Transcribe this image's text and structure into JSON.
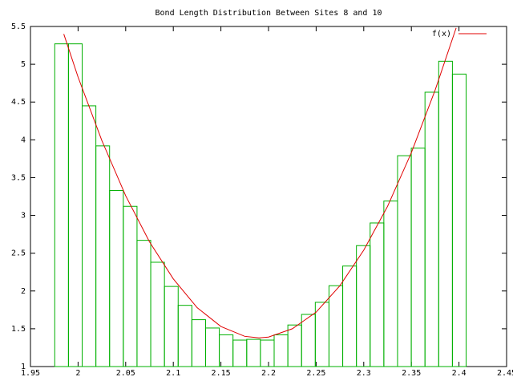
{
  "chart_data": {
    "type": "histogram",
    "title": "Bond Length Distribution Between Sites 8 and 10",
    "bins": [
      1.9755,
      1.9899,
      2.0043,
      2.0187,
      2.0331,
      2.0475,
      2.0619,
      2.0763,
      2.0907,
      2.1051,
      2.1195,
      2.1339,
      2.1483,
      2.1627,
      2.1771,
      2.1915,
      2.2059,
      2.2203,
      2.2347,
      2.2491,
      2.2635,
      2.2779,
      2.2923,
      2.3067,
      2.3211,
      2.3355,
      2.3499,
      2.3643,
      2.3787,
      2.3931,
      2.4075
    ],
    "values": [
      5.27,
      5.27,
      4.45,
      3.92,
      3.33,
      3.12,
      2.67,
      2.38,
      2.06,
      1.81,
      1.62,
      1.51,
      1.42,
      1.35,
      1.36,
      1.35,
      1.42,
      1.55,
      1.69,
      1.85,
      2.07,
      2.33,
      2.6,
      2.9,
      3.19,
      3.79,
      3.89,
      4.63,
      5.04,
      4.87
    ],
    "color": "#00b000",
    "fit": {
      "name": "f(x)",
      "color": "#e00000",
      "x": [
        1.985,
        2.0,
        2.025,
        2.05,
        2.075,
        2.1,
        2.125,
        2.15,
        2.175,
        2.19,
        2.2,
        2.225,
        2.25,
        2.275,
        2.3,
        2.325,
        2.35,
        2.375,
        2.397
      ],
      "values": [
        5.4,
        4.83,
        3.99,
        3.26,
        2.65,
        2.16,
        1.78,
        1.53,
        1.4,
        1.38,
        1.39,
        1.5,
        1.72,
        2.07,
        2.54,
        3.12,
        3.83,
        4.66,
        5.48
      ]
    },
    "legend": "top-right",
    "xlim": [
      1.95,
      2.45
    ],
    "xticks": [
      1.95,
      2,
      2.05,
      2.1,
      2.15,
      2.2,
      2.25,
      2.3,
      2.35,
      2.4,
      2.45
    ],
    "ylim": [
      1,
      5.5
    ],
    "yticks": [
      1,
      1.5,
      2,
      2.5,
      3,
      3.5,
      4,
      4.5,
      5,
      5.5
    ]
  }
}
